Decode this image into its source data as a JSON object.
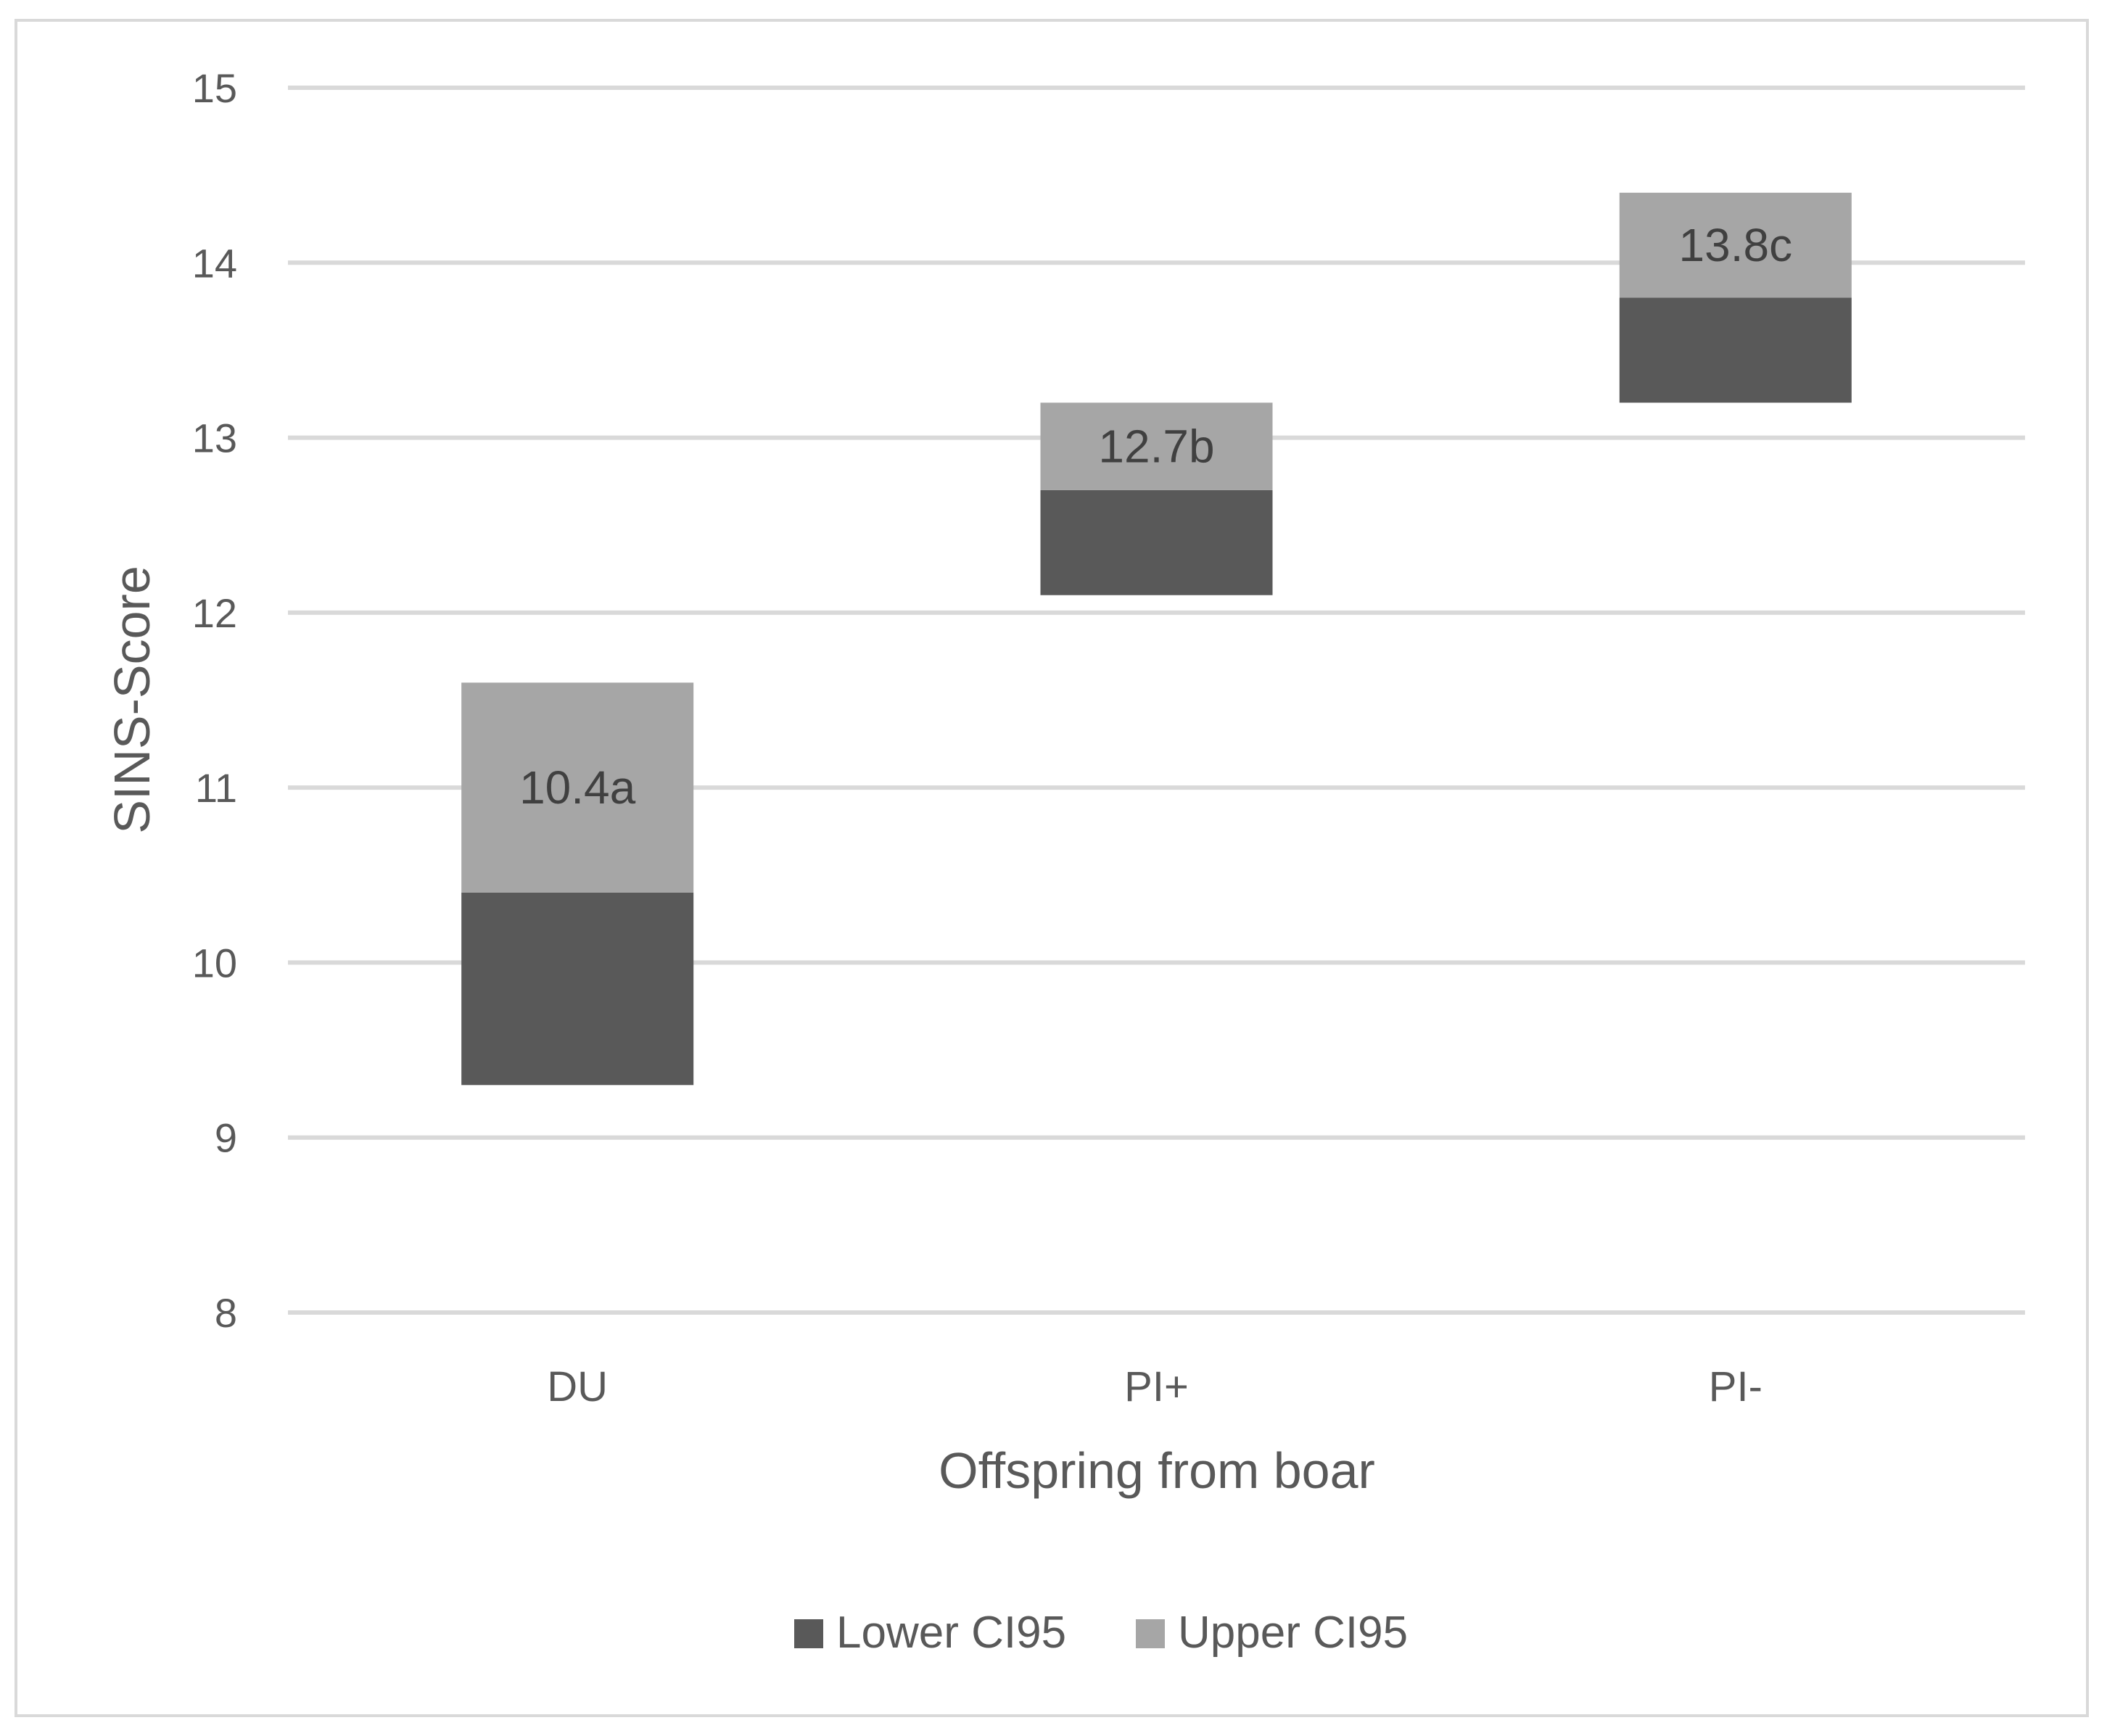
{
  "chart_data": {
    "type": "bar",
    "subtype": "stacked-floating-range",
    "title": "",
    "xlabel": "Offspring from boar",
    "ylabel": "SINS-Score",
    "ylim": [
      8,
      15
    ],
    "yticks": [
      8,
      9,
      10,
      11,
      12,
      13,
      14,
      15
    ],
    "grid": true,
    "legend_position": "bottom",
    "categories": [
      "DU",
      "PI+",
      "PI-"
    ],
    "range_low": [
      9.3,
      12.1,
      13.2
    ],
    "series": [
      {
        "name": "Lower CI95",
        "color": "#595959",
        "from": [
          9.3,
          12.1,
          13.2
        ],
        "to": [
          10.4,
          12.7,
          13.8
        ]
      },
      {
        "name": "Upper CI95",
        "color": "#a6a6a6",
        "from": [
          10.4,
          12.7,
          13.8
        ],
        "to": [
          11.6,
          13.2,
          14.4
        ]
      }
    ],
    "data_labels": [
      "10.4a",
      "12.7b",
      "13.8c"
    ],
    "data_label_values": [
      10.4,
      12.7,
      13.8
    ]
  }
}
